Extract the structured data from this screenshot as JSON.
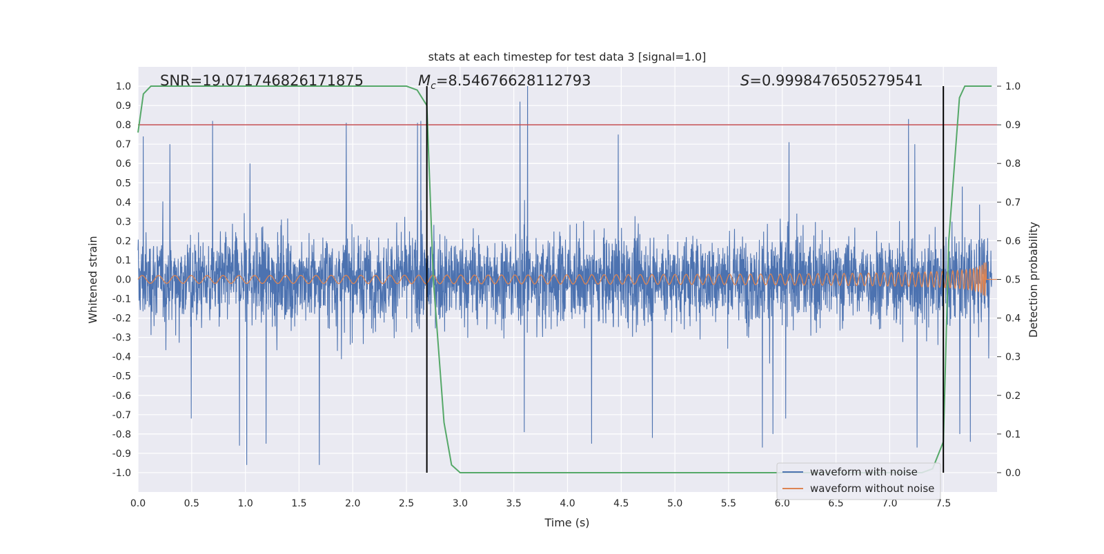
{
  "chart_data": {
    "type": "line",
    "title": "stats at each timestep for test data 3 [signal=1.0]",
    "xlabel": "Time (s)",
    "ylabel": "Whitened strain",
    "y2label": "Detection probability",
    "xlim": [
      0,
      8
    ],
    "ylim": [
      -1.1,
      1.1
    ],
    "y2lim": [
      -0.05,
      1.05
    ],
    "x_ticks": [
      "0.0",
      "0.5",
      "1.0",
      "1.5",
      "2.0",
      "2.5",
      "3.0",
      "3.5",
      "4.0",
      "4.5",
      "5.0",
      "5.5",
      "6.0",
      "6.5",
      "7.0",
      "7.5"
    ],
    "y_ticks": [
      "1.0",
      "0.9",
      "0.8",
      "0.7",
      "0.6",
      "0.5",
      "0.4",
      "0.3",
      "0.2",
      "0.1",
      "0.0",
      "-0.1",
      "-0.2",
      "-0.3",
      "-0.4",
      "-0.5",
      "-0.6",
      "-0.7",
      "-0.8",
      "-0.9",
      "-1.0"
    ],
    "y2_ticks": [
      "1.0",
      "0.9",
      "0.8",
      "0.7",
      "0.6",
      "0.5",
      "0.4",
      "0.3",
      "0.2",
      "0.1",
      "0.0"
    ],
    "grid": true,
    "legend_placement": "lower-right",
    "annotations": {
      "snr": "SNR=19.071746826171875",
      "mc_symbol": "M",
      "mc_sub": "c",
      "mc_value": "=8.54676628112793",
      "s_symbol": "S",
      "s_value": "=0.9998476505279541"
    },
    "threshold": {
      "y2": 0.9,
      "color": "#c44e52"
    },
    "vertical_lines_x": [
      2.69,
      7.5
    ],
    "series": [
      {
        "name": "waveform with noise",
        "color": "#4c72b0",
        "noise_band": {
          "typical_amplitude": 0.5,
          "extreme_peak": 1.0,
          "extreme_trough": -0.96
        },
        "peaks": [
          [
            0.05,
            0.74
          ],
          [
            0.3,
            0.7
          ],
          [
            0.7,
            0.82
          ],
          [
            1.05,
            0.6
          ],
          [
            1.95,
            0.81
          ],
          [
            2.62,
            0.81
          ],
          [
            2.65,
            0.82
          ],
          [
            3.58,
            0.92
          ],
          [
            3.65,
            1.0
          ],
          [
            4.5,
            0.75
          ],
          [
            6.1,
            0.71
          ],
          [
            7.22,
            0.83
          ],
          [
            7.28,
            0.7
          ],
          [
            7.8,
            0.81
          ]
        ],
        "troughs": [
          [
            0.5,
            -0.72
          ],
          [
            0.95,
            -0.86
          ],
          [
            1.02,
            -0.96
          ],
          [
            1.2,
            -0.85
          ],
          [
            1.7,
            -0.96
          ],
          [
            3.62,
            -0.79
          ],
          [
            4.25,
            -0.85
          ],
          [
            4.82,
            -0.82
          ],
          [
            5.85,
            -0.87
          ],
          [
            5.95,
            -0.8
          ],
          [
            6.07,
            -0.72
          ],
          [
            7.3,
            -0.87
          ],
          [
            7.7,
            -0.8
          ],
          [
            7.8,
            -0.84
          ]
        ]
      },
      {
        "name": "waveform without noise",
        "color": "#dd8452",
        "chirp": {
          "start_amplitude": 0.02,
          "peak_time": 7.87,
          "peak_amplitude": 0.44,
          "min_amplitude": -0.55,
          "merger_end": 7.9
        }
      },
      {
        "name": "detection probability",
        "color": "#55a868",
        "axis": "y2",
        "x": [
          0.0,
          0.05,
          0.12,
          0.3,
          2.5,
          2.6,
          2.69,
          2.75,
          2.85,
          2.92,
          3.0,
          7.3,
          7.4,
          7.5,
          7.55,
          7.65,
          7.7,
          7.95
        ],
        "y": [
          0.88,
          0.98,
          1.0,
          1.0,
          1.0,
          0.99,
          0.95,
          0.5,
          0.13,
          0.02,
          0.0,
          0.0,
          0.01,
          0.08,
          0.6,
          0.97,
          1.0,
          1.0
        ]
      }
    ]
  }
}
